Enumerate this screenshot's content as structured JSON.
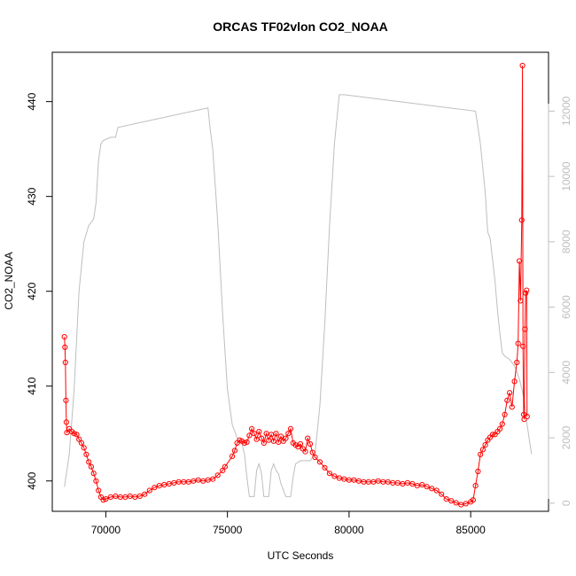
{
  "chart_data": {
    "type": "scatter",
    "title": "ORCAS TF02vlon CO2_NOAA",
    "xlabel": "UTC Seconds",
    "ylabel": "CO2_NOAA",
    "xlim": [
      67800,
      88200
    ],
    "ylim": [
      396.8,
      445.2
    ],
    "xticks": [
      70000,
      75000,
      80000,
      85000
    ],
    "yticks": [
      400,
      410,
      420,
      430,
      440
    ],
    "y2lim": [
      -250,
      13800
    ],
    "y2ticks": [
      0,
      2000,
      4000,
      6000,
      8000,
      10000,
      12000
    ],
    "grid": false,
    "colors": {
      "co2": "#ff0000",
      "altitude": "#bebebe",
      "axis": "#000000"
    },
    "series": [
      {
        "axis": "left",
        "style": "points-connected",
        "points": [
          [
            68300,
            415.2
          ],
          [
            68320,
            414.1
          ],
          [
            68340,
            412.5
          ],
          [
            68360,
            408.5
          ],
          [
            68380,
            406.2
          ],
          [
            68400,
            405.1
          ],
          [
            68500,
            405.5
          ],
          [
            68600,
            405.2
          ],
          [
            68700,
            405.0
          ],
          [
            68800,
            404.9
          ],
          [
            68900,
            404.4
          ],
          [
            69000,
            404.0
          ],
          [
            69100,
            403.5
          ],
          [
            69200,
            402.8
          ],
          [
            69300,
            402.0
          ],
          [
            69400,
            401.5
          ],
          [
            69500,
            400.8
          ],
          [
            69600,
            400.0
          ],
          [
            69700,
            399.0
          ],
          [
            69800,
            398.3
          ],
          [
            69900,
            398.0
          ],
          [
            70000,
            398.1
          ],
          [
            70200,
            398.3
          ],
          [
            70400,
            398.4
          ],
          [
            70600,
            398.3
          ],
          [
            70800,
            398.3
          ],
          [
            71000,
            398.4
          ],
          [
            71200,
            398.3
          ],
          [
            71400,
            398.4
          ],
          [
            71600,
            398.6
          ],
          [
            71800,
            399.0
          ],
          [
            72000,
            399.3
          ],
          [
            72200,
            399.5
          ],
          [
            72400,
            399.6
          ],
          [
            72600,
            399.7
          ],
          [
            72800,
            399.8
          ],
          [
            73000,
            399.9
          ],
          [
            73200,
            399.9
          ],
          [
            73400,
            399.9
          ],
          [
            73600,
            400.0
          ],
          [
            73800,
            400.1
          ],
          [
            74000,
            400.0
          ],
          [
            74200,
            400.1
          ],
          [
            74400,
            400.2
          ],
          [
            74600,
            400.6
          ],
          [
            74800,
            401.1
          ],
          [
            74900,
            401.5
          ],
          [
            75200,
            402.6
          ],
          [
            75300,
            403.2
          ],
          [
            75400,
            404.0
          ],
          [
            75500,
            404.3
          ],
          [
            75600,
            404.2
          ],
          [
            75700,
            404.0
          ],
          [
            75800,
            404.1
          ],
          [
            75900,
            404.8
          ],
          [
            76000,
            405.5
          ],
          [
            76100,
            405.0
          ],
          [
            76200,
            404.4
          ],
          [
            76300,
            405.2
          ],
          [
            76400,
            404.5
          ],
          [
            76500,
            404.0
          ],
          [
            76600,
            405.0
          ],
          [
            76700,
            404.3
          ],
          [
            76800,
            404.9
          ],
          [
            76900,
            404.2
          ],
          [
            77000,
            405.0
          ],
          [
            77100,
            404.1
          ],
          [
            77200,
            404.7
          ],
          [
            77300,
            404.2
          ],
          [
            77400,
            404.5
          ],
          [
            77500,
            405.0
          ],
          [
            77600,
            405.5
          ],
          [
            77700,
            404.0
          ],
          [
            77800,
            403.8
          ],
          [
            77900,
            403.6
          ],
          [
            78000,
            403.9
          ],
          [
            78100,
            403.4
          ],
          [
            78200,
            403.1
          ],
          [
            78300,
            404.5
          ],
          [
            78400,
            403.9
          ],
          [
            78500,
            403.0
          ],
          [
            78600,
            402.5
          ],
          [
            78800,
            402.0
          ],
          [
            79000,
            401.4
          ],
          [
            79200,
            400.8
          ],
          [
            79400,
            400.5
          ],
          [
            79600,
            400.3
          ],
          [
            79800,
            400.2
          ],
          [
            80000,
            400.1
          ],
          [
            80200,
            400.1
          ],
          [
            80400,
            400.0
          ],
          [
            80600,
            399.9
          ],
          [
            80800,
            399.9
          ],
          [
            81000,
            399.9
          ],
          [
            81200,
            400.0
          ],
          [
            81400,
            399.9
          ],
          [
            81600,
            399.9
          ],
          [
            81800,
            399.8
          ],
          [
            82000,
            399.8
          ],
          [
            82200,
            399.7
          ],
          [
            82400,
            399.8
          ],
          [
            82600,
            399.7
          ],
          [
            82800,
            399.5
          ],
          [
            83000,
            399.6
          ],
          [
            83200,
            399.4
          ],
          [
            83400,
            399.2
          ],
          [
            83600,
            399.0
          ],
          [
            83800,
            398.6
          ],
          [
            84000,
            398.1
          ],
          [
            84200,
            397.9
          ],
          [
            84400,
            397.7
          ],
          [
            84600,
            397.5
          ],
          [
            84800,
            397.6
          ],
          [
            85000,
            397.8
          ],
          [
            85100,
            398.0
          ],
          [
            85200,
            399.5
          ],
          [
            85300,
            401.0
          ],
          [
            85400,
            402.8
          ],
          [
            85500,
            403.3
          ],
          [
            85600,
            403.8
          ],
          [
            85700,
            404.3
          ],
          [
            85800,
            404.6
          ],
          [
            85900,
            404.9
          ],
          [
            86000,
            404.9
          ],
          [
            86100,
            405.2
          ],
          [
            86200,
            405.5
          ],
          [
            86300,
            406.0
          ],
          [
            86400,
            407.0
          ],
          [
            86500,
            408.5
          ],
          [
            86600,
            409.3
          ],
          [
            86700,
            407.8
          ],
          [
            86800,
            410.5
          ],
          [
            86900,
            412.5
          ],
          [
            86950,
            414.5
          ],
          [
            87000,
            423.2
          ],
          [
            87050,
            419.0
          ],
          [
            87100,
            427.5
          ],
          [
            87130,
            443.8
          ],
          [
            87150,
            414.2
          ],
          [
            87180,
            407.0
          ],
          [
            87200,
            406.5
          ],
          [
            87230,
            416.0
          ],
          [
            87260,
            419.8
          ],
          [
            87300,
            420.1
          ],
          [
            87320,
            406.8
          ]
        ]
      },
      {
        "axis": "right",
        "style": "line",
        "points": [
          [
            68300,
            500
          ],
          [
            68500,
            1500
          ],
          [
            68700,
            3500
          ],
          [
            68900,
            6500
          ],
          [
            69100,
            8000
          ],
          [
            69300,
            8500
          ],
          [
            69500,
            8700
          ],
          [
            69600,
            9200
          ],
          [
            69700,
            10500
          ],
          [
            69800,
            11000
          ],
          [
            69900,
            11100
          ],
          [
            70200,
            11200
          ],
          [
            70400,
            11200
          ],
          [
            70500,
            11500
          ],
          [
            74200,
            12100
          ],
          [
            74300,
            11400
          ],
          [
            74400,
            10800
          ],
          [
            74600,
            8600
          ],
          [
            74800,
            5800
          ],
          [
            75000,
            3500
          ],
          [
            75200,
            2400
          ],
          [
            75400,
            2000
          ],
          [
            75600,
            1800
          ],
          [
            75700,
            1500
          ],
          [
            75800,
            800
          ],
          [
            75900,
            200
          ],
          [
            76100,
            200
          ],
          [
            76200,
            1000
          ],
          [
            76300,
            1200
          ],
          [
            76400,
            900
          ],
          [
            76500,
            200
          ],
          [
            76700,
            200
          ],
          [
            76800,
            1000
          ],
          [
            76900,
            1200
          ],
          [
            77000,
            1000
          ],
          [
            77100,
            900
          ],
          [
            77200,
            600
          ],
          [
            77400,
            200
          ],
          [
            77600,
            200
          ],
          [
            77700,
            800
          ],
          [
            77800,
            1200
          ],
          [
            78000,
            1300
          ],
          [
            78400,
            1300
          ],
          [
            78600,
            1500
          ],
          [
            78800,
            3000
          ],
          [
            79000,
            5500
          ],
          [
            79200,
            8500
          ],
          [
            79400,
            11000
          ],
          [
            79600,
            12500
          ],
          [
            79800,
            12500
          ],
          [
            85200,
            12000
          ],
          [
            85400,
            11000
          ],
          [
            85600,
            9500
          ],
          [
            85700,
            8300
          ],
          [
            85800,
            8100
          ],
          [
            86000,
            6800
          ],
          [
            86100,
            5900
          ],
          [
            86200,
            5200
          ],
          [
            86300,
            4600
          ],
          [
            86400,
            4500
          ],
          [
            86600,
            4400
          ],
          [
            86800,
            4200
          ],
          [
            87000,
            3800
          ],
          [
            87200,
            3200
          ],
          [
            87300,
            2500
          ],
          [
            87500,
            1500
          ]
        ]
      }
    ]
  }
}
